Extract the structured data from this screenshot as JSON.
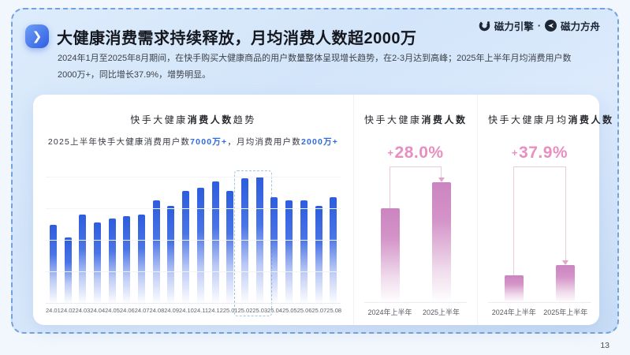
{
  "page": {
    "number": "13"
  },
  "brand": {
    "logo1": "磁力引擎",
    "separator": "·",
    "logo2": "磁力方舟"
  },
  "header": {
    "title": "大健康消费需求持续释放，月均消费人数超2000万",
    "description_line1": "2024年1月至2025年8月期间，在快手购买大健康商品的用户数量整体呈现增长趋势，在2-3月达到高峰；2025年上半年月均消费用户数",
    "description_line2": "2000万+，同比增长37.9%，增势明显。"
  },
  "colors": {
    "accent_blue": "#2e6ae2",
    "trend_bar_blue": "#2d5dde",
    "compare_bar_pink": "#cf8ac2",
    "growth_pink": "#e78fc0",
    "slide_dashed_border": "#74a3dc"
  },
  "chart_data": [
    {
      "type": "bar",
      "title": "快手大健康消费人数趋势",
      "title_parts": {
        "prefix": "快手大健康",
        "bold": "消费人数",
        "suffix": "趋势"
      },
      "subtitle_segments": [
        {
          "text": "2025上半年快手大健康消费用户数",
          "highlight": false
        },
        {
          "text": "7000万+",
          "highlight": true
        },
        {
          "text": "，月均消费用户数",
          "highlight": false
        },
        {
          "text": "2000万+",
          "highlight": true
        }
      ],
      "categories": [
        "24.01",
        "24.02",
        "24.03",
        "24.04",
        "24.05",
        "24.06",
        "24.07",
        "24.08",
        "24.09",
        "24.10",
        "24.11",
        "24.12",
        "25.01",
        "25.02",
        "25.03",
        "25.04",
        "25.05",
        "25.06",
        "25.07",
        "25.08"
      ],
      "values": [
        62,
        52,
        70,
        64,
        67,
        69,
        70,
        81,
        77,
        89,
        91,
        96,
        89,
        99,
        100,
        84,
        81,
        81,
        77,
        84
      ],
      "value_note": "relative height index (max month 25.03 = 100); y-axis unlabeled",
      "highlighted_categories": [
        "25.02",
        "25.03"
      ],
      "ylabel": "",
      "xlabel": "",
      "grid": true,
      "legend": false
    },
    {
      "type": "bar",
      "title": "快手大健康消费人数",
      "title_parts": {
        "prefix": "快手大健康",
        "bold": "消费人数",
        "suffix": ""
      },
      "categories": [
        "2024年上半年",
        "2025上半年"
      ],
      "values": [
        78,
        100
      ],
      "value_note": "relative heights; 2025 H1 = 2024 H1 × 1.28",
      "growth_label": "+28.0%",
      "growth_plus": "+",
      "growth_value": "28.0%",
      "grid": false,
      "legend": false
    },
    {
      "type": "bar",
      "title": "快手大健康月均消费人数",
      "title_parts": {
        "prefix": "快手大健康月均",
        "bold": "消费人数",
        "suffix": ""
      },
      "categories": [
        "2024年上半年",
        "2025年上半年"
      ],
      "values": [
        72.5,
        100
      ],
      "value_note": "relative heights; 2025 H1 = 2024 H1 × 1.379",
      "growth_label": "+37.9%",
      "growth_plus": "+",
      "growth_value": "37.9%",
      "grid": false,
      "legend": false
    }
  ]
}
